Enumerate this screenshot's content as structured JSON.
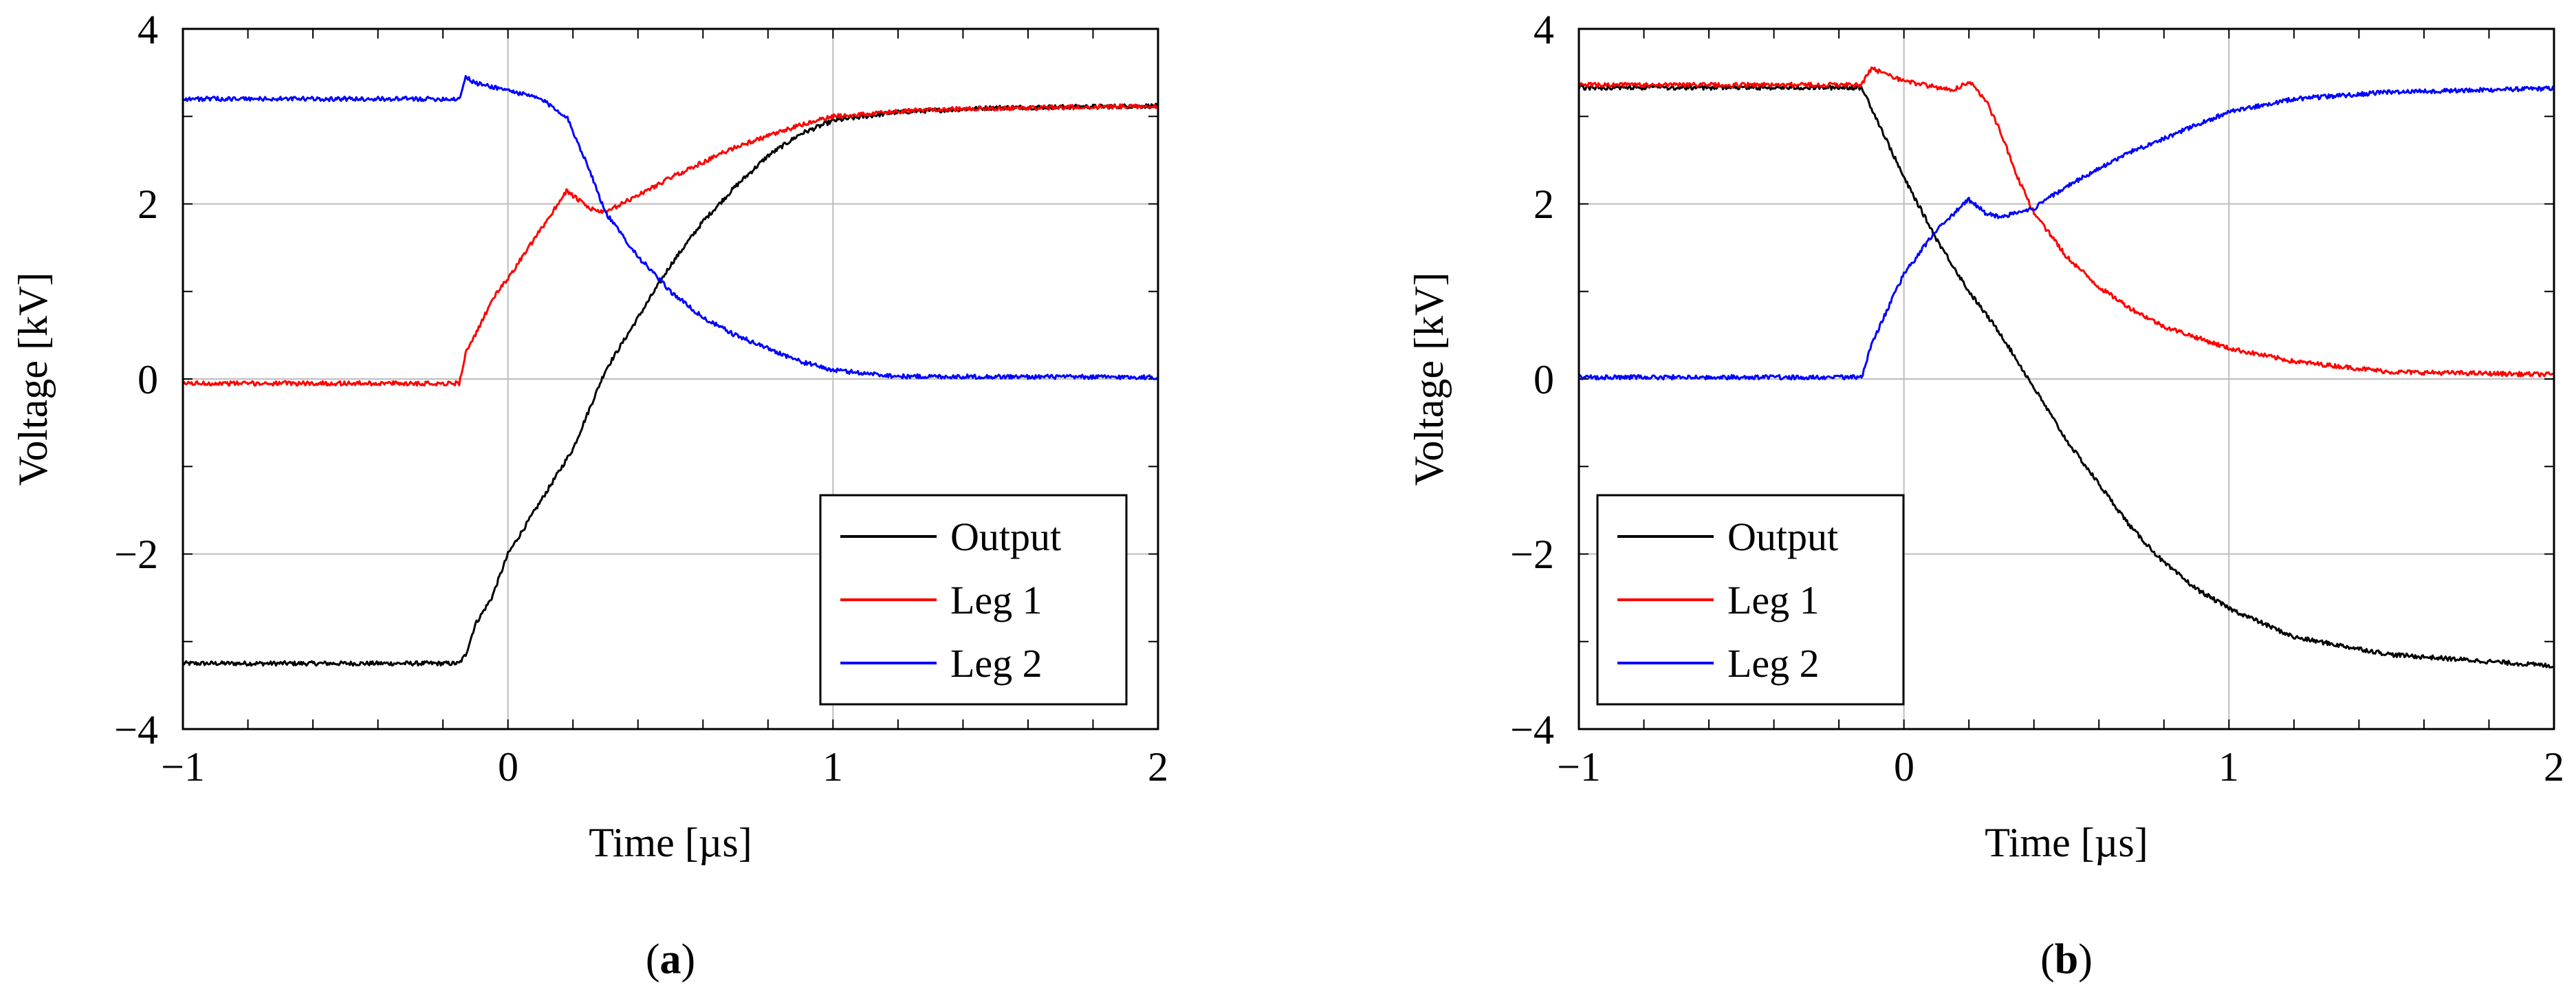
{
  "chart_data": [
    {
      "id": "a",
      "type": "line",
      "caption_open": "(",
      "caption_letter": "a",
      "caption_close": ")",
      "xlabel": "Time [µs]",
      "ylabel": "Voltage [kV]",
      "xlim": [
        -1,
        2
      ],
      "ylim": [
        -4,
        4
      ],
      "xticks": [
        -1,
        0,
        1,
        2
      ],
      "xtick_labels": [
        "−1",
        "0",
        "1",
        "2"
      ],
      "yticks": [
        -4,
        -2,
        0,
        2,
        4
      ],
      "ytick_labels": [
        "−4",
        "−2",
        "0",
        "2",
        "4"
      ],
      "grid": true,
      "legend_position": "bottom-right",
      "series": [
        {
          "name": "Output",
          "color": "#000000",
          "x": [
            -1,
            -0.5,
            -0.15,
            -0.13,
            -0.1,
            -0.05,
            0,
            0.1,
            0.2,
            0.3,
            0.4,
            0.5,
            0.6,
            0.7,
            0.8,
            0.9,
            1.0,
            1.2,
            1.5,
            2.0
          ],
          "y": [
            -3.25,
            -3.25,
            -3.25,
            -3.15,
            -2.8,
            -2.5,
            -2.0,
            -1.4,
            -0.8,
            0.1,
            0.7,
            1.3,
            1.8,
            2.2,
            2.55,
            2.8,
            2.95,
            3.05,
            3.1,
            3.12
          ]
        },
        {
          "name": "Leg 1",
          "color": "#ff0000",
          "x": [
            -1,
            -0.5,
            -0.15,
            -0.13,
            -0.1,
            -0.05,
            0,
            0.1,
            0.18,
            0.25,
            0.3,
            0.4,
            0.5,
            0.7,
            0.9,
            1.0,
            1.3,
            2.0
          ],
          "y": [
            -0.05,
            -0.05,
            -0.05,
            0.3,
            0.5,
            0.9,
            1.15,
            1.7,
            2.15,
            1.95,
            1.9,
            2.1,
            2.3,
            2.65,
            2.9,
            3.0,
            3.08,
            3.12
          ]
        },
        {
          "name": "Leg 2",
          "color": "#0000ff",
          "x": [
            -1,
            -0.5,
            -0.15,
            -0.13,
            -0.1,
            0,
            0.1,
            0.18,
            0.25,
            0.3,
            0.4,
            0.5,
            0.6,
            0.7,
            0.8,
            0.9,
            1.0,
            1.2,
            2.0
          ],
          "y": [
            3.2,
            3.2,
            3.2,
            3.45,
            3.38,
            3.3,
            3.2,
            3.0,
            2.4,
            1.9,
            1.4,
            1.0,
            0.7,
            0.5,
            0.35,
            0.2,
            0.1,
            0.03,
            0.02
          ]
        }
      ]
    },
    {
      "id": "b",
      "type": "line",
      "caption_open": "(",
      "caption_letter": "b",
      "caption_close": ")",
      "xlabel": "Time [µs]",
      "ylabel": "Voltage [kV]",
      "xlim": [
        -1,
        2
      ],
      "ylim": [
        -4,
        4
      ],
      "xticks": [
        -1,
        0,
        1,
        2
      ],
      "xtick_labels": [
        "−1",
        "0",
        "1",
        "2"
      ],
      "yticks": [
        -4,
        -2,
        0,
        2,
        4
      ],
      "ytick_labels": [
        "−4",
        "−2",
        "0",
        "2",
        "4"
      ],
      "grid": true,
      "legend_position": "bottom-right",
      "series": [
        {
          "name": "Output",
          "color": "#000000",
          "x": [
            -1,
            -0.5,
            -0.13,
            -0.1,
            0,
            0.1,
            0.2,
            0.3,
            0.4,
            0.5,
            0.6,
            0.7,
            0.8,
            0.9,
            1.0,
            1.2,
            1.5,
            2.0
          ],
          "y": [
            3.33,
            3.33,
            3.33,
            3.1,
            2.3,
            1.6,
            1.0,
            0.5,
            -0.1,
            -0.7,
            -1.2,
            -1.7,
            -2.1,
            -2.4,
            -2.62,
            -2.95,
            -3.15,
            -3.28
          ]
        },
        {
          "name": "Leg 1",
          "color": "#ff0000",
          "x": [
            -1,
            -0.5,
            -0.13,
            -0.1,
            0,
            0.15,
            0.2,
            0.25,
            0.3,
            0.35,
            0.4,
            0.5,
            0.6,
            0.7,
            0.8,
            1.0,
            1.2,
            1.5,
            2.0
          ],
          "y": [
            3.36,
            3.36,
            3.36,
            3.55,
            3.4,
            3.3,
            3.4,
            3.2,
            2.8,
            2.3,
            1.9,
            1.4,
            1.05,
            0.8,
            0.6,
            0.35,
            0.2,
            0.08,
            0.05
          ]
        },
        {
          "name": "Leg 2",
          "color": "#0000ff",
          "x": [
            -1,
            -0.5,
            -0.13,
            -0.1,
            0,
            0.1,
            0.2,
            0.25,
            0.3,
            0.4,
            0.5,
            0.7,
            0.9,
            1.0,
            1.2,
            1.5,
            2.0
          ],
          "y": [
            0.02,
            0.02,
            0.02,
            0.4,
            1.2,
            1.7,
            2.05,
            1.9,
            1.85,
            1.95,
            2.2,
            2.6,
            2.9,
            3.05,
            3.2,
            3.28,
            3.32
          ]
        }
      ]
    }
  ]
}
